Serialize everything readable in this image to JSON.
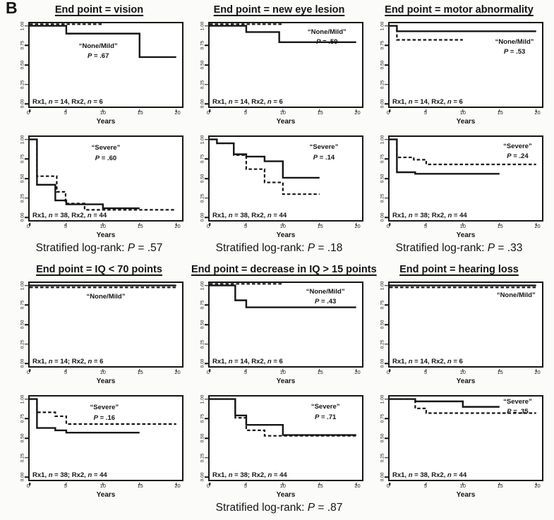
{
  "figure_label": "B",
  "colors": {
    "ink": "#161616",
    "plot_background": "#ffffff",
    "page_background": "#fbfbfa"
  },
  "chart_data": {
    "type": "line",
    "subtype": "kaplan-meier-step",
    "xlabel": "Years",
    "xlim": [
      0,
      20
    ],
    "ylim": [
      0,
      1
    ],
    "x_max_render": 20.8,
    "xticks": [
      0,
      5,
      10,
      15,
      20
    ],
    "yticks": [
      {
        "label": "1.00",
        "value": 1.0
      },
      {
        "label": "0.75",
        "value": 0.75
      },
      {
        "label": "0.50",
        "value": 0.5
      },
      {
        "label": "0.25",
        "value": 0.25
      },
      {
        "label": "0.00",
        "value": 0.0
      }
    ],
    "grid": false,
    "series_legend": [
      {
        "name": "Rx1",
        "style": "solid"
      },
      {
        "name": "Rx2",
        "style": "dashed"
      }
    ],
    "groups": [
      {
        "columns": [
          {
            "title": "End point = vision",
            "stratified": "Stratified log-rank: P = .57",
            "panels": [
              {
                "group_label": "“None/Mild”",
                "p_label": "P = .67",
                "sample_label": "Rx1, n = 14, Rx2, n = 6",
                "label_pos": {
                  "x_pct": 45,
                  "y_pct": 22
                },
                "solid": [
                  [
                    0,
                    1
                  ],
                  [
                    5,
                    1
                  ],
                  [
                    5,
                    0.9
                  ],
                  [
                    15,
                    0.9
                  ],
                  [
                    15,
                    0.6
                  ],
                  [
                    20,
                    0.6
                  ]
                ],
                "dashed": [
                  [
                    0,
                    1.02
                  ],
                  [
                    10,
                    1.02
                  ]
                ]
              },
              {
                "group_label": "“Severe”",
                "p_label": "P = .60",
                "sample_label": "Rx1, n = 38, Rx2, n = 44",
                "label_pos": {
                  "x_pct": 50,
                  "y_pct": 8
                },
                "solid": [
                  [
                    0,
                    1
                  ],
                  [
                    1,
                    1
                  ],
                  [
                    1,
                    0.42
                  ],
                  [
                    3.5,
                    0.42
                  ],
                  [
                    3.5,
                    0.22
                  ],
                  [
                    5,
                    0.22
                  ],
                  [
                    5,
                    0.17
                  ],
                  [
                    10,
                    0.17
                  ],
                  [
                    10,
                    0.12
                  ],
                  [
                    15,
                    0.12
                  ]
                ],
                "dashed": [
                  [
                    0,
                    1
                  ],
                  [
                    1,
                    1
                  ],
                  [
                    1,
                    0.53
                  ],
                  [
                    3.7,
                    0.53
                  ],
                  [
                    3.7,
                    0.33
                  ],
                  [
                    4.9,
                    0.33
                  ],
                  [
                    4.9,
                    0.18
                  ],
                  [
                    7.5,
                    0.18
                  ],
                  [
                    7.5,
                    0.1
                  ],
                  [
                    20,
                    0.1
                  ]
                ]
              }
            ]
          },
          {
            "title": "End point = new eye lesion",
            "stratified": "Stratified log-rank: P = .18",
            "panels": [
              {
                "group_label": "“None/Mild”",
                "p_label": "P = .59",
                "sample_label": "Rx1, n = 14, Rx2, n = 6",
                "label_pos": {
                  "x_pct": 77,
                  "y_pct": 5
                },
                "solid": [
                  [
                    0,
                    1
                  ],
                  [
                    5,
                    1
                  ],
                  [
                    5,
                    0.92
                  ],
                  [
                    9.5,
                    0.92
                  ],
                  [
                    9.5,
                    0.79
                  ],
                  [
                    20,
                    0.79
                  ]
                ],
                "dashed": [
                  [
                    0,
                    1.02
                  ],
                  [
                    10,
                    1.02
                  ]
                ]
              },
              {
                "group_label": "“Severe”",
                "p_label": "P = .14",
                "sample_label": "Rx1, n = 38, Rx2, n = 44",
                "label_pos": {
                  "x_pct": 75,
                  "y_pct": 7
                },
                "solid": [
                  [
                    0,
                    1
                  ],
                  [
                    1,
                    1
                  ],
                  [
                    1,
                    0.95
                  ],
                  [
                    3.3,
                    0.95
                  ],
                  [
                    3.3,
                    0.81
                  ],
                  [
                    5,
                    0.81
                  ],
                  [
                    5,
                    0.78
                  ],
                  [
                    7.5,
                    0.78
                  ],
                  [
                    7.5,
                    0.72
                  ],
                  [
                    10,
                    0.72
                  ],
                  [
                    10,
                    0.51
                  ],
                  [
                    15,
                    0.51
                  ]
                ],
                "dashed": [
                  [
                    0,
                    1
                  ],
                  [
                    1,
                    1
                  ],
                  [
                    1,
                    0.95
                  ],
                  [
                    3.3,
                    0.95
                  ],
                  [
                    3.3,
                    0.8
                  ],
                  [
                    5,
                    0.8
                  ],
                  [
                    5,
                    0.62
                  ],
                  [
                    7.5,
                    0.62
                  ],
                  [
                    7.5,
                    0.45
                  ],
                  [
                    10,
                    0.45
                  ],
                  [
                    10,
                    0.3
                  ],
                  [
                    15,
                    0.3
                  ]
                ]
              }
            ]
          },
          {
            "title": "End point = motor abnormality",
            "stratified": "Stratified log-rank: P = .33",
            "panels": [
              {
                "group_label": "“None/Mild”",
                "p_label": "P = .53",
                "sample_label": "Rx1, n = 14, Rx2, n = 6",
                "label_pos": {
                  "x_pct": 82,
                  "y_pct": 17
                },
                "solid": [
                  [
                    0,
                    1
                  ],
                  [
                    1,
                    1
                  ],
                  [
                    1,
                    0.93
                  ],
                  [
                    20,
                    0.93
                  ]
                ],
                "dashed": [
                  [
                    0,
                    1
                  ],
                  [
                    1,
                    1
                  ],
                  [
                    1,
                    0.82
                  ],
                  [
                    10,
                    0.82
                  ]
                ]
              },
              {
                "group_label": "“Severe”",
                "p_label": "P = .24",
                "sample_label": "Rx1, n = 38; Rx2, n = 44",
                "label_pos": {
                  "x_pct": 84,
                  "y_pct": 6
                },
                "solid": [
                  [
                    0,
                    1
                  ],
                  [
                    1,
                    1
                  ],
                  [
                    1,
                    0.58
                  ],
                  [
                    3.5,
                    0.58
                  ],
                  [
                    3.5,
                    0.56
                  ],
                  [
                    15,
                    0.56
                  ]
                ],
                "dashed": [
                  [
                    0,
                    1
                  ],
                  [
                    1,
                    1
                  ],
                  [
                    1,
                    0.77
                  ],
                  [
                    3.3,
                    0.77
                  ],
                  [
                    3.3,
                    0.74
                  ],
                  [
                    5,
                    0.74
                  ],
                  [
                    5,
                    0.68
                  ],
                  [
                    20,
                    0.68
                  ]
                ]
              }
            ]
          }
        ]
      },
      {
        "columns": [
          {
            "title": "End point = IQ < 70 points",
            "stratified": "",
            "panels": [
              {
                "group_label": "“None/Mild”",
                "p_label": "",
                "sample_label": "Rx1, n = 14; Rx2, n = 6",
                "label_pos": {
                  "x_pct": 50,
                  "y_pct": 11
                },
                "solid": [
                  [
                    0,
                    1
                  ],
                  [
                    20,
                    1
                  ]
                ],
                "dashed": [
                  [
                    0,
                    0.975
                  ],
                  [
                    20,
                    0.975
                  ]
                ]
              },
              {
                "group_label": "“Severe”",
                "p_label": "P = .16",
                "sample_label": "Rx1, n = 38; Rx2, n = 44",
                "label_pos": {
                  "x_pct": 49,
                  "y_pct": 8
                },
                "solid": [
                  [
                    0,
                    1
                  ],
                  [
                    1,
                    1
                  ],
                  [
                    1,
                    0.63
                  ],
                  [
                    3.5,
                    0.63
                  ],
                  [
                    3.5,
                    0.6
                  ],
                  [
                    5,
                    0.6
                  ],
                  [
                    5,
                    0.57
                  ],
                  [
                    15,
                    0.57
                  ]
                ],
                "dashed": [
                  [
                    0,
                    1
                  ],
                  [
                    1,
                    1
                  ],
                  [
                    1,
                    0.83
                  ],
                  [
                    3.5,
                    0.83
                  ],
                  [
                    3.5,
                    0.78
                  ],
                  [
                    5,
                    0.78
                  ],
                  [
                    5,
                    0.68
                  ],
                  [
                    20,
                    0.68
                  ]
                ]
              }
            ]
          },
          {
            "title": "End point = decrease in IQ > 15 points",
            "stratified": "Stratified log-rank: P = .87",
            "panels": [
              {
                "group_label": "“None/Mild”",
                "p_label": "P = .43",
                "sample_label": "Rx1, n = 14, Rx2, n = 6",
                "label_pos": {
                  "x_pct": 76,
                  "y_pct": 5
                },
                "solid": [
                  [
                    0,
                    1
                  ],
                  [
                    3.5,
                    1
                  ],
                  [
                    3.5,
                    0.81
                  ],
                  [
                    5,
                    0.81
                  ],
                  [
                    5,
                    0.72
                  ],
                  [
                    20,
                    0.72
                  ]
                ],
                "dashed": [
                  [
                    0,
                    1.02
                  ],
                  [
                    10,
                    1.02
                  ]
                ]
              },
              {
                "group_label": "“Severe”",
                "p_label": "P = .71",
                "sample_label": "Rx1, n = 38; Rx2, n = 44",
                "label_pos": {
                  "x_pct": 76,
                  "y_pct": 7
                },
                "solid": [
                  [
                    0,
                    1
                  ],
                  [
                    3.5,
                    1
                  ],
                  [
                    3.5,
                    0.79
                  ],
                  [
                    5,
                    0.79
                  ],
                  [
                    5,
                    0.67
                  ],
                  [
                    10,
                    0.67
                  ],
                  [
                    10,
                    0.54
                  ],
                  [
                    20,
                    0.54
                  ]
                ],
                "dashed": [
                  [
                    0,
                    1
                  ],
                  [
                    3.5,
                    1
                  ],
                  [
                    3.5,
                    0.76
                  ],
                  [
                    5,
                    0.76
                  ],
                  [
                    5,
                    0.6
                  ],
                  [
                    7.5,
                    0.6
                  ],
                  [
                    7.5,
                    0.53
                  ],
                  [
                    20,
                    0.53
                  ]
                ]
              }
            ]
          },
          {
            "title": "End point = hearing loss",
            "stratified": "",
            "panels": [
              {
                "group_label": "“None/Mild”",
                "p_label": "",
                "sample_label": "Rx1, n = 14, Rx2, n = 6",
                "label_pos": {
                  "x_pct": 83,
                  "y_pct": 9
                },
                "solid": [
                  [
                    0,
                    1
                  ],
                  [
                    20,
                    1
                  ]
                ],
                "dashed": [
                  [
                    0,
                    0.975
                  ],
                  [
                    20,
                    0.975
                  ]
                ]
              },
              {
                "group_label": "“Severe”",
                "p_label": "P = .35",
                "sample_label": "Rx1, n = 38, Rx2, n = 44",
                "label_pos": {
                  "x_pct": 84,
                  "y_pct": 1
                },
                "solid": [
                  [
                    0,
                    1
                  ],
                  [
                    3.5,
                    1
                  ],
                  [
                    3.5,
                    0.97
                  ],
                  [
                    10,
                    0.97
                  ],
                  [
                    10,
                    0.9
                  ],
                  [
                    15,
                    0.9
                  ]
                ],
                "dashed": [
                  [
                    0,
                    1
                  ],
                  [
                    3.5,
                    1
                  ],
                  [
                    3.5,
                    0.88
                  ],
                  [
                    5,
                    0.88
                  ],
                  [
                    5,
                    0.82
                  ],
                  [
                    20,
                    0.82
                  ]
                ]
              }
            ]
          }
        ]
      }
    ]
  }
}
